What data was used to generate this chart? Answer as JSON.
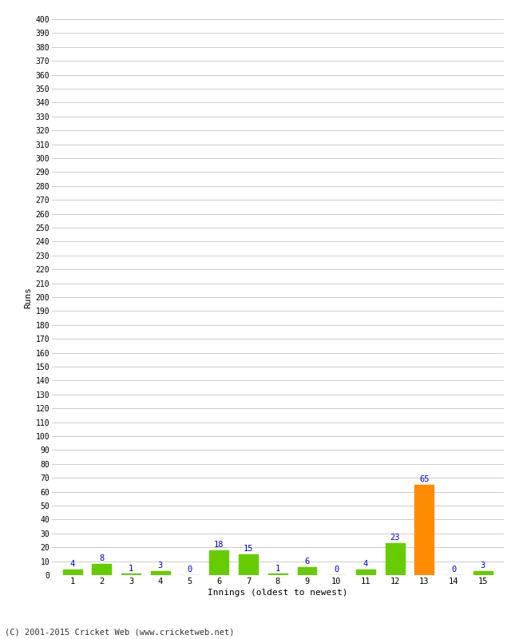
{
  "innings": [
    1,
    2,
    3,
    4,
    5,
    6,
    7,
    8,
    9,
    10,
    11,
    12,
    13,
    14,
    15
  ],
  "values": [
    4,
    8,
    1,
    3,
    0,
    18,
    15,
    1,
    6,
    0,
    4,
    23,
    65,
    0,
    3
  ],
  "bar_colors": [
    "#66cc00",
    "#66cc00",
    "#66cc00",
    "#66cc00",
    "#66cc00",
    "#66cc00",
    "#66cc00",
    "#66cc00",
    "#66cc00",
    "#66cc00",
    "#66cc00",
    "#66cc00",
    "#ff8c00",
    "#66cc00",
    "#66cc00"
  ],
  "label_color": "#0000cc",
  "xlabel": "Innings (oldest to newest)",
  "ylabel": "Runs",
  "ylim": [
    0,
    400
  ],
  "yticks": [
    0,
    10,
    20,
    30,
    40,
    50,
    60,
    70,
    80,
    90,
    100,
    110,
    120,
    130,
    140,
    150,
    160,
    170,
    180,
    190,
    200,
    210,
    220,
    230,
    240,
    250,
    260,
    270,
    280,
    290,
    300,
    310,
    320,
    330,
    340,
    350,
    360,
    370,
    380,
    390,
    400
  ],
  "background_color": "#ffffff",
  "grid_color": "#cccccc",
  "footer": "(C) 2001-2015 Cricket Web (www.cricketweb.net)",
  "bar_width": 0.65
}
